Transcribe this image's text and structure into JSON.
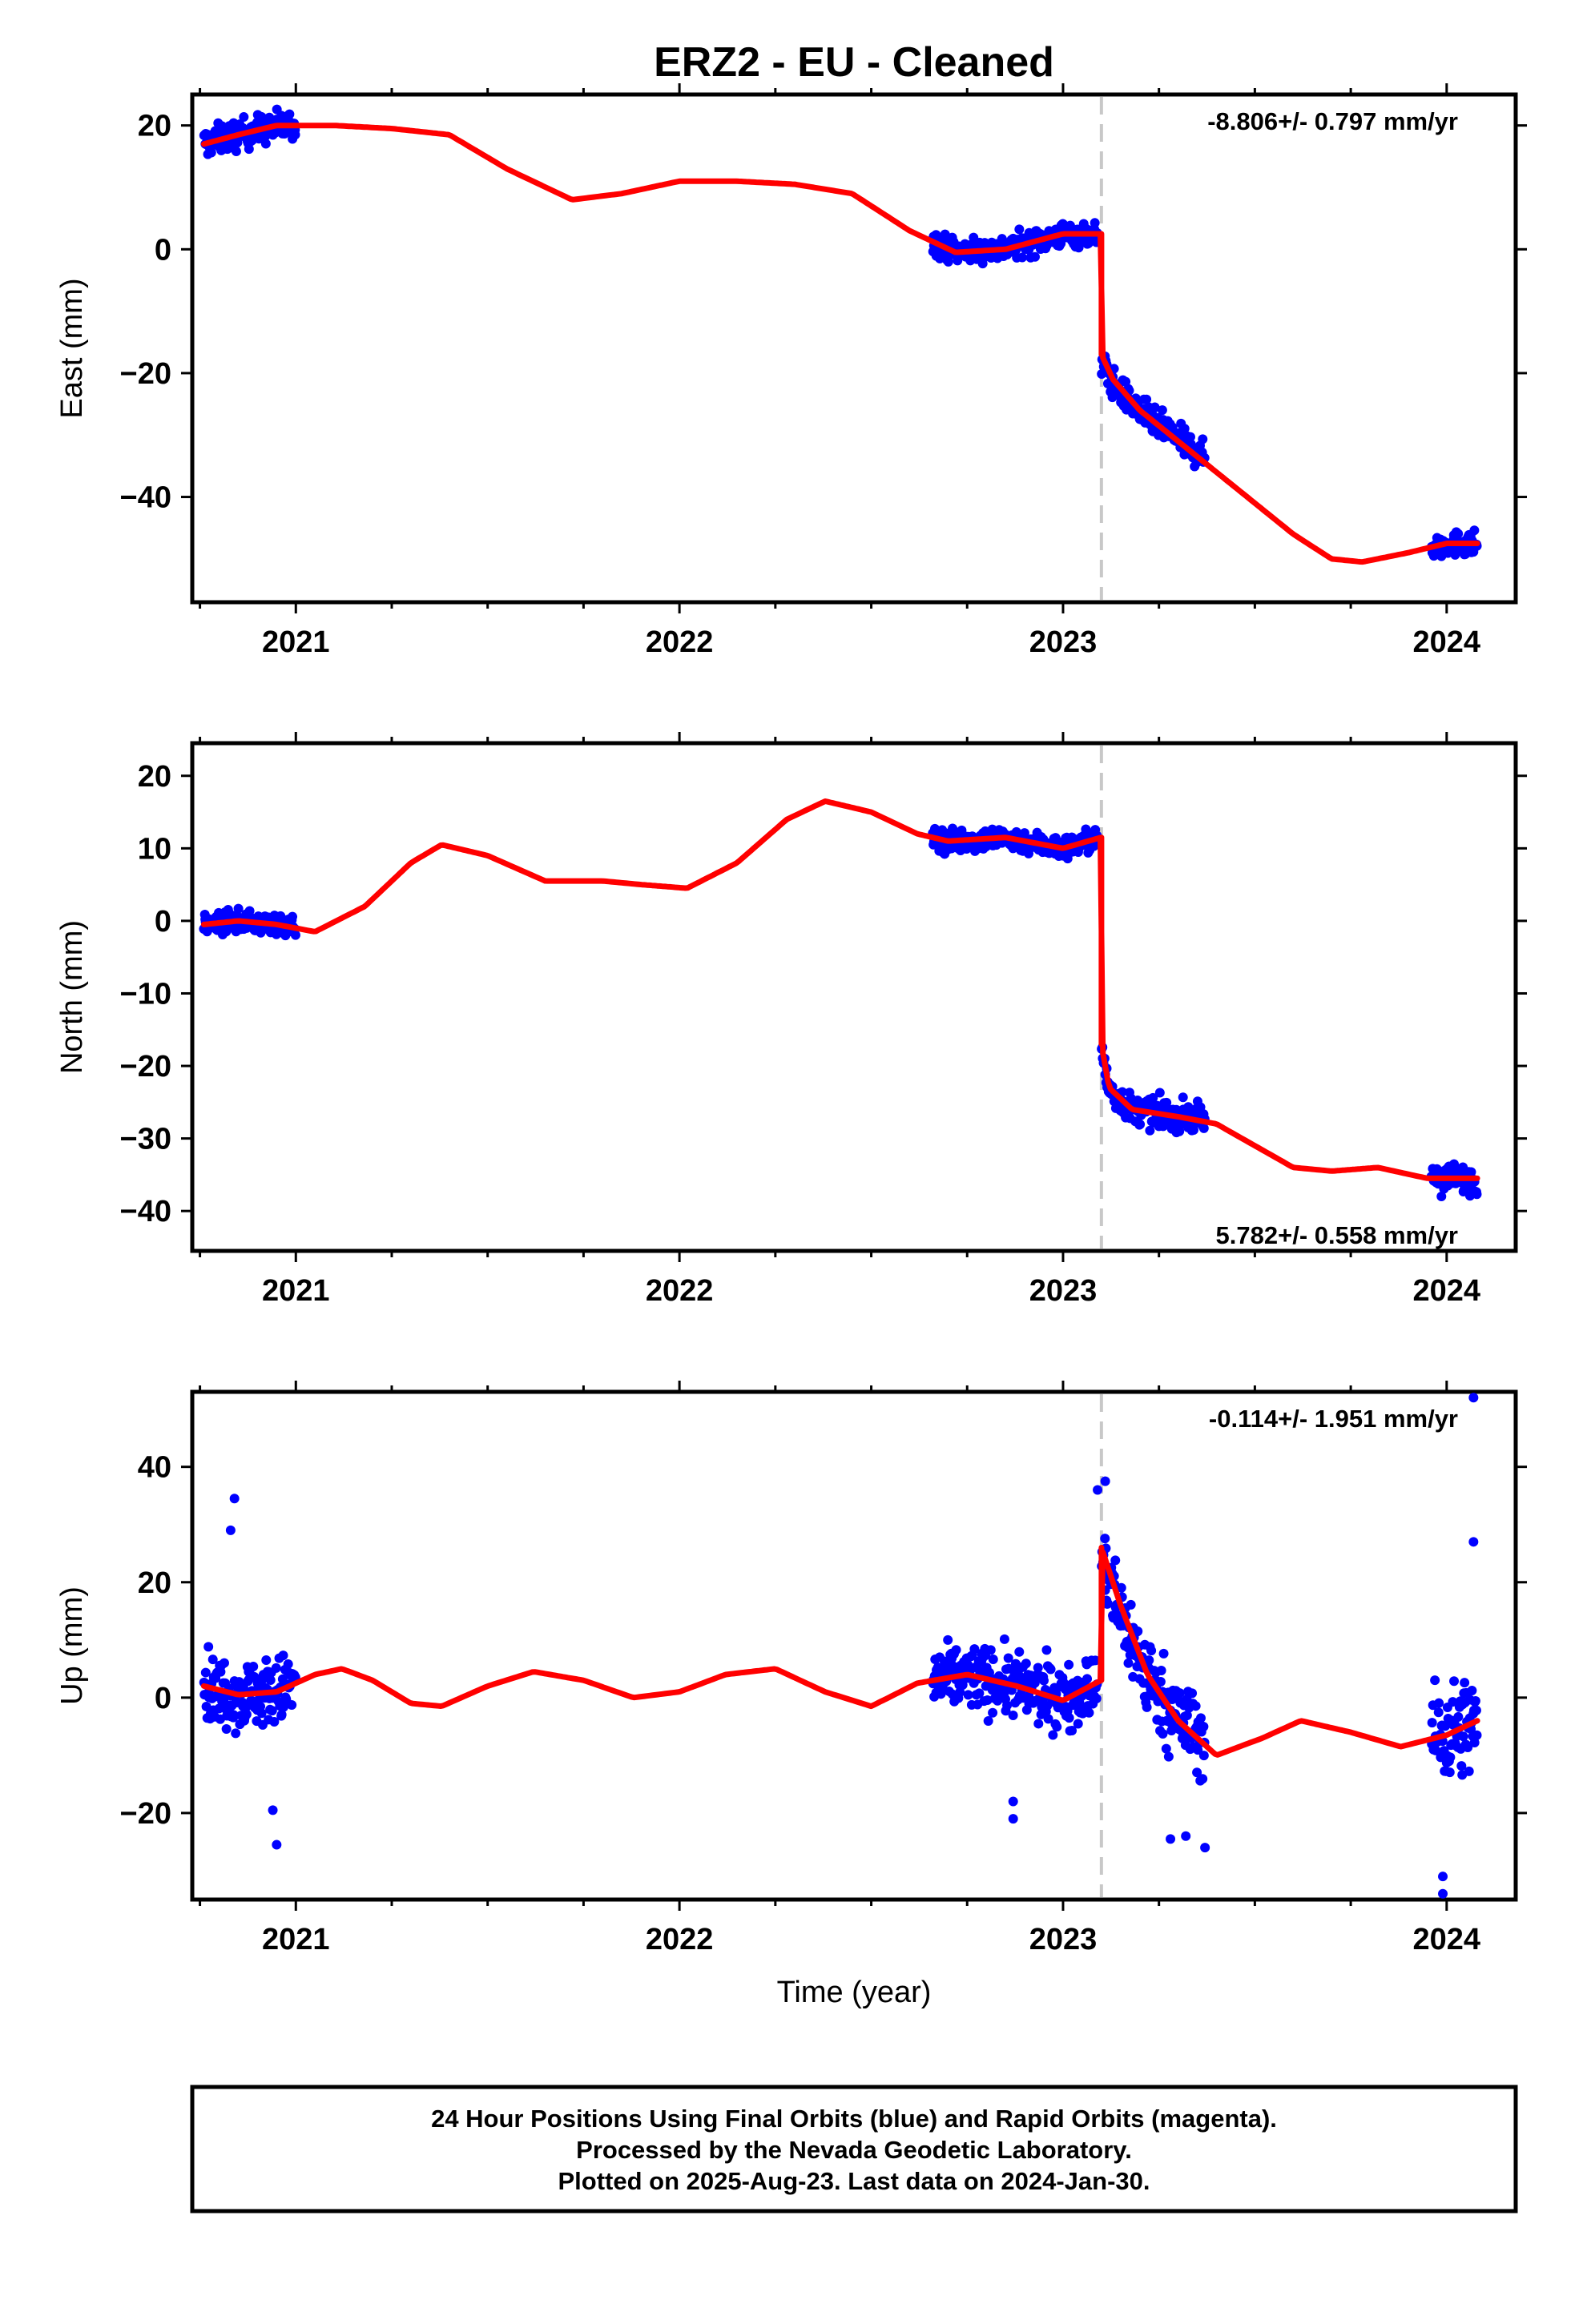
{
  "title": "ERZ2  - EU - Cleaned",
  "xlabel": "Time (year)",
  "footer": [
    "24 Hour Positions Using Final Orbits (blue) and Rapid Orbits (magenta).",
    "Processed by the Nevada Geodetic Laboratory.",
    "Plotted on 2025-Aug-23. Last data on 2024-Jan-30."
  ],
  "colors": {
    "points": "#0000ff",
    "model": "#ff0000",
    "offset_line": "#c8c8c8",
    "axes": "#000000"
  },
  "chart_data": [
    {
      "type": "scatter",
      "panel": "east",
      "ylabel": "East (mm)",
      "rate_label": "-8.806+/- 0.797 mm/yr",
      "xlim": [
        2020.73,
        2024.18
      ],
      "ylim": [
        -57,
        25
      ],
      "xticks": [
        2021,
        2022,
        2023,
        2024
      ],
      "yticks": [
        20,
        0,
        -20,
        -40
      ],
      "offset_epoch": 2023.1,
      "data_segments": [
        {
          "x_range": [
            2020.76,
            2021.0
          ],
          "y_mean": 18.5,
          "y_spread": 3.0
        },
        {
          "x_range": [
            2022.66,
            2023.09
          ],
          "y_mean": 1.0,
          "y_spread": 2.5
        },
        {
          "x_range": [
            2023.1,
            2023.37
          ],
          "y_mean": -28,
          "y_spread": 3.0
        },
        {
          "x_range": [
            2023.96,
            2024.08
          ],
          "y_mean": -48,
          "y_spread": 2.5
        }
      ],
      "model": {
        "x": [
          2020.76,
          2020.85,
          2020.95,
          2021.1,
          2021.25,
          2021.4,
          2021.55,
          2021.72,
          2021.85,
          2022.0,
          2022.15,
          2022.3,
          2022.45,
          2022.6,
          2022.72,
          2022.85,
          2023.0,
          2023.099,
          2023.1,
          2023.13,
          2023.2,
          2023.3,
          2023.4,
          2023.5,
          2023.6,
          2023.7,
          2023.78,
          2023.9,
          2024.0,
          2024.08
        ],
        "y": [
          17,
          18.5,
          20,
          20,
          19.5,
          18.5,
          13,
          8,
          9,
          11,
          11,
          10.5,
          9,
          3,
          -0.5,
          0,
          2.5,
          2.5,
          -17,
          -21,
          -26,
          -31,
          -36,
          -41,
          -46,
          -50,
          -50.5,
          -49,
          -47.5,
          -47.5
        ]
      }
    },
    {
      "type": "scatter",
      "panel": "north",
      "ylabel": "North (mm)",
      "rate_label": "5.782+/- 0.558 mm/yr",
      "xlim": [
        2020.73,
        2024.18
      ],
      "ylim": [
        -45.5,
        24.5
      ],
      "xticks": [
        2021,
        2022,
        2023,
        2024
      ],
      "yticks": [
        20,
        10,
        0,
        -10,
        -20,
        -30,
        -40
      ],
      "offset_epoch": 2023.1,
      "data_segments": [
        {
          "x_range": [
            2020.76,
            2021.0
          ],
          "y_mean": -0.5,
          "y_spread": 1.8
        },
        {
          "x_range": [
            2022.66,
            2023.09
          ],
          "y_mean": 10.5,
          "y_spread": 2.0
        },
        {
          "x_range": [
            2023.1,
            2023.37
          ],
          "y_mean": -26,
          "y_spread": 2.5
        },
        {
          "x_range": [
            2023.96,
            2024.08
          ],
          "y_mean": -36,
          "y_spread": 2.5
        }
      ],
      "model": {
        "x": [
          2020.76,
          2020.85,
          2020.95,
          2021.05,
          2021.18,
          2021.3,
          2021.38,
          2021.5,
          2021.65,
          2021.8,
          2021.9,
          2022.02,
          2022.15,
          2022.28,
          2022.38,
          2022.5,
          2022.62,
          2022.7,
          2022.85,
          2023.0,
          2023.099,
          2023.1,
          2023.12,
          2023.18,
          2023.3,
          2023.4,
          2023.5,
          2023.6,
          2023.7,
          2023.82,
          2023.95,
          2024.08
        ],
        "y": [
          -0.5,
          0,
          -0.5,
          -1.5,
          2,
          8,
          10.5,
          9,
          5.5,
          5.5,
          5,
          4.5,
          8,
          14,
          16.5,
          15,
          12,
          11,
          11.5,
          10,
          11.5,
          -17,
          -23,
          -26,
          -27,
          -28,
          -31,
          -34,
          -34.5,
          -34,
          -35.5,
          -35.5
        ]
      }
    },
    {
      "type": "scatter",
      "panel": "up",
      "ylabel": "Up (mm)",
      "rate_label": "-0.114+/- 1.951 mm/yr",
      "xlim": [
        2020.73,
        2024.18
      ],
      "ylim": [
        -35,
        53
      ],
      "xticks": [
        2021,
        2022,
        2023,
        2024
      ],
      "yticks": [
        40,
        20,
        0,
        -20
      ],
      "offset_epoch": 2023.1,
      "data_segments": [
        {
          "x_range": [
            2020.76,
            2021.0
          ],
          "y_mean": 1.5,
          "y_spread": 7.5
        },
        {
          "x_range": [
            2022.66,
            2023.09
          ],
          "y_mean": 2.0,
          "y_spread": 7.0
        },
        {
          "x_range": [
            2023.1,
            2023.37
          ],
          "y_mean": 0.0,
          "y_spread": 9.0
        },
        {
          "x_range": [
            2023.96,
            2024.08
          ],
          "y_mean": -5.0,
          "y_spread": 11.0
        }
      ],
      "outliers": [
        [
          2020.84,
          34.5
        ],
        [
          2020.83,
          29
        ],
        [
          2020.95,
          -25.5
        ],
        [
          2020.94,
          -19.5
        ],
        [
          2022.87,
          -18
        ],
        [
          2022.87,
          -21
        ],
        [
          2023.09,
          36
        ],
        [
          2023.11,
          37.5
        ],
        [
          2023.28,
          -24.5
        ],
        [
          2023.32,
          -24
        ],
        [
          2023.37,
          -26
        ],
        [
          2023.99,
          -31
        ],
        [
          2023.99,
          -34
        ],
        [
          2024.07,
          52
        ],
        [
          2024.07,
          27
        ]
      ],
      "model": {
        "x": [
          2020.76,
          2020.85,
          2020.95,
          2021.05,
          2021.12,
          2021.2,
          2021.3,
          2021.38,
          2021.5,
          2021.62,
          2021.75,
          2021.88,
          2022.0,
          2022.12,
          2022.25,
          2022.38,
          2022.5,
          2022.62,
          2022.75,
          2022.88,
          2023.0,
          2023.099,
          2023.1,
          2023.15,
          2023.22,
          2023.3,
          2023.4,
          2023.52,
          2023.62,
          2023.75,
          2023.88,
          2024.0,
          2024.08
        ],
        "y": [
          2,
          0.5,
          1,
          4,
          5,
          3,
          -1,
          -1.5,
          2,
          4.5,
          3,
          0,
          1,
          4,
          5,
          1,
          -1.5,
          2.5,
          4,
          2,
          -0.5,
          3,
          26,
          16,
          4,
          -4,
          -10,
          -7,
          -4,
          -6,
          -8.5,
          -6.5,
          -4
        ]
      }
    }
  ]
}
